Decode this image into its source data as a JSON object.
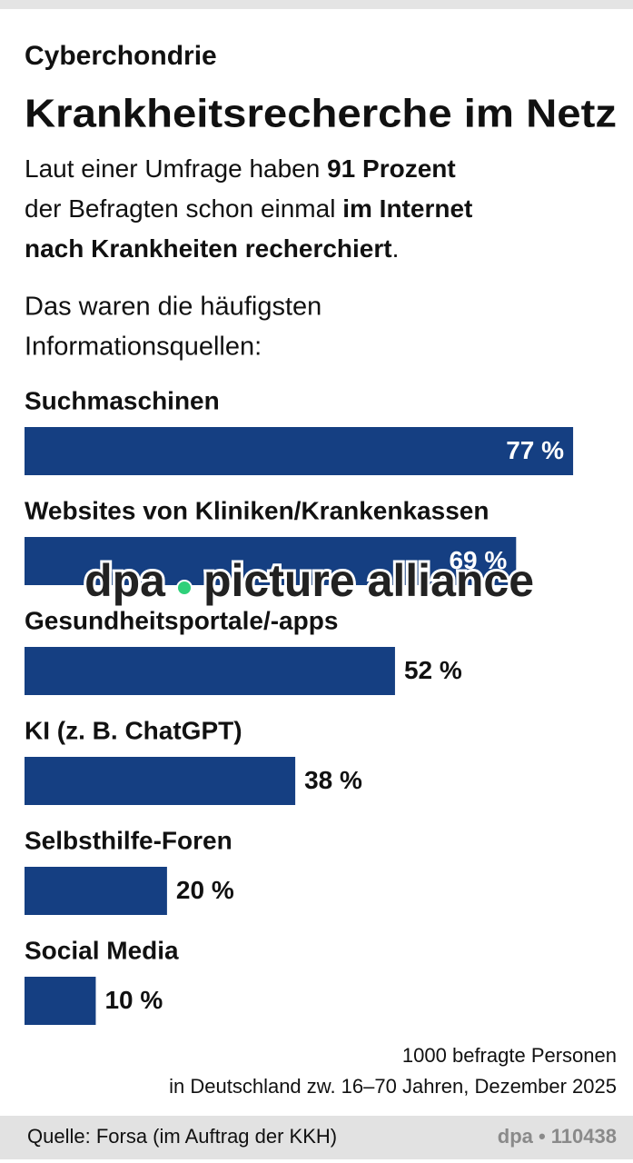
{
  "chart_data": {
    "type": "bar",
    "kicker": "Cyberchondrie",
    "title": "Krankheitsrecherche im Netz",
    "subtitle": [
      [
        {
          "text": "Laut einer Umfrage haben ",
          "bold": false
        },
        {
          "text": "91 Prozent",
          "bold": true
        }
      ],
      [
        {
          "text": "der Befragten schon einmal ",
          "bold": false
        },
        {
          "text": "im Internet",
          "bold": true
        }
      ],
      [
        {
          "text": "nach Krankheiten recherchiert",
          "bold": true
        },
        {
          "text": ".",
          "bold": false
        }
      ]
    ],
    "intro": [
      "Das waren die häufigsten",
      "Informationsquellen:"
    ],
    "categories": [
      "Suchmaschinen",
      "Websites von Kliniken/Krankenkassen",
      "Gesundheitsportale/-apps",
      "KI (z. B. ChatGPT)",
      "Selbsthilfe-Foren",
      "Social Media"
    ],
    "values": [
      77,
      69,
      52,
      38,
      20,
      10
    ],
    "value_labels": [
      "77 %",
      "69 %",
      "52 %",
      "38 %",
      "20 %",
      "10 %"
    ],
    "color": "#153f82",
    "note": [
      "1000 befragte Personen",
      "in Deutschland zw. 16–70 Jahren, Dezember 2025"
    ],
    "source": "Quelle: Forsa (im Auftrag der KKH)",
    "credit": "dpa • 110438",
    "watermark": [
      "dpa",
      "picture alliance"
    ]
  }
}
